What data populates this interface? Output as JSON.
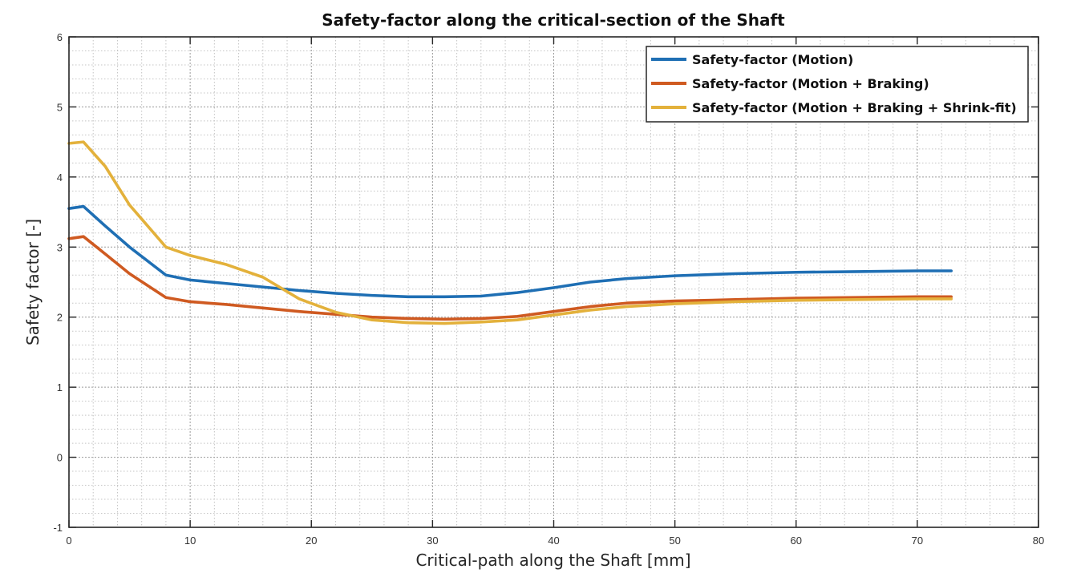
{
  "chart_data": {
    "type": "line",
    "title": "Safety-factor along the critical-section of the Shaft",
    "xlabel": "Critical-path along the Shaft [mm]",
    "ylabel": "Safety factor [-]",
    "xlim": [
      0,
      80
    ],
    "ylim": [
      -1,
      6
    ],
    "xticks": [
      0,
      10,
      20,
      30,
      40,
      50,
      60,
      70,
      80
    ],
    "yticks": [
      -1,
      0,
      1,
      2,
      3,
      4,
      5,
      6
    ],
    "xtick_labels": [
      "0",
      "10",
      "20",
      "30",
      "40",
      "50",
      "60",
      "70",
      "80"
    ],
    "ytick_labels": [
      "-1",
      "0",
      "1",
      "2",
      "3",
      "4",
      "5",
      "6"
    ],
    "grid": true,
    "minor_grid": true,
    "legend_position": "top-right",
    "series": [
      {
        "name": "Safety-factor (Motion)",
        "color": "#1f6fb4",
        "x": [
          0,
          1.2,
          3,
          5,
          8,
          10,
          13,
          16,
          19,
          22,
          25,
          28,
          31,
          34,
          37,
          40,
          43,
          46,
          50,
          55,
          60,
          65,
          70,
          72.8
        ],
        "y": [
          3.55,
          3.58,
          3.3,
          3.0,
          2.6,
          2.53,
          2.48,
          2.43,
          2.38,
          2.34,
          2.31,
          2.29,
          2.29,
          2.3,
          2.35,
          2.42,
          2.5,
          2.55,
          2.59,
          2.62,
          2.64,
          2.65,
          2.66,
          2.66
        ]
      },
      {
        "name": "Safety-factor (Motion + Braking)",
        "color": "#cf5a21",
        "x": [
          0,
          1.2,
          3,
          5,
          8,
          10,
          13,
          16,
          19,
          22,
          25,
          28,
          31,
          34,
          37,
          40,
          43,
          46,
          50,
          55,
          60,
          65,
          70,
          72.8
        ],
        "y": [
          3.12,
          3.15,
          2.9,
          2.62,
          2.28,
          2.22,
          2.18,
          2.13,
          2.08,
          2.04,
          2.0,
          1.98,
          1.97,
          1.98,
          2.01,
          2.08,
          2.15,
          2.2,
          2.23,
          2.25,
          2.27,
          2.28,
          2.29,
          2.29
        ]
      },
      {
        "name": "Safety-factor (Motion + Braking + Shrink-fit)",
        "color": "#e3b13b",
        "x": [
          0,
          1.2,
          3,
          5,
          8,
          10,
          13,
          16,
          19,
          22,
          25,
          28,
          31,
          34,
          37,
          40,
          43,
          46,
          50,
          55,
          60,
          65,
          70,
          72.8
        ],
        "y": [
          4.48,
          4.5,
          4.15,
          3.6,
          3.0,
          2.88,
          2.75,
          2.57,
          2.26,
          2.07,
          1.96,
          1.92,
          1.91,
          1.93,
          1.96,
          2.03,
          2.1,
          2.15,
          2.19,
          2.22,
          2.24,
          2.25,
          2.26,
          2.26
        ]
      }
    ]
  }
}
